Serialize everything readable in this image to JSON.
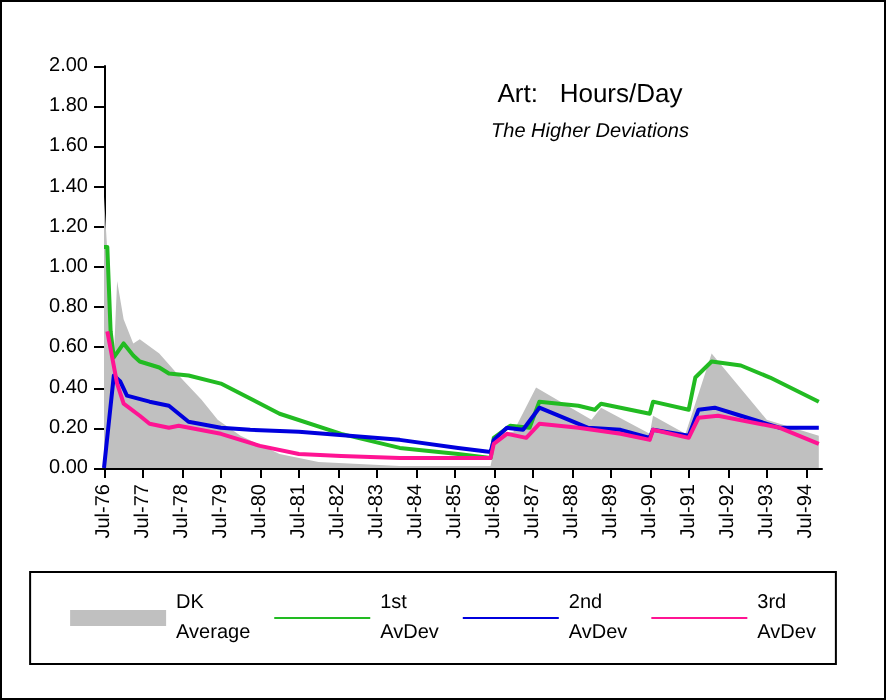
{
  "chart_data": {
    "type": "line",
    "title": "Art:   Hours/Day",
    "subtitle": "The Higher Deviations",
    "xlim": [
      "1976-07",
      "1994-12"
    ],
    "xticks": [
      {
        "value": "1976-07",
        "label": "Jul-76"
      },
      {
        "value": "1977-07",
        "label": "Jul-77"
      },
      {
        "value": "1978-07",
        "label": "Jul-78"
      },
      {
        "value": "1979-07",
        "label": "Jul-79"
      },
      {
        "value": "1980-07",
        "label": "Jul-80"
      },
      {
        "value": "1981-07",
        "label": "Jul-81"
      },
      {
        "value": "1982-07",
        "label": "Jul-82"
      },
      {
        "value": "1983-07",
        "label": "Jul-83"
      },
      {
        "value": "1984-07",
        "label": "Jul-84"
      },
      {
        "value": "1985-07",
        "label": "Jul-85"
      },
      {
        "value": "1986-07",
        "label": "Jul-86"
      },
      {
        "value": "1987-07",
        "label": "Jul-87"
      },
      {
        "value": "1988-07",
        "label": "Jul-88"
      },
      {
        "value": "1989-07",
        "label": "Jul-89"
      },
      {
        "value": "1990-07",
        "label": "Jul-90"
      },
      {
        "value": "1991-07",
        "label": "Jul-91"
      },
      {
        "value": "1992-07",
        "label": "Jul-92"
      },
      {
        "value": "1993-07",
        "label": "Jul-93"
      },
      {
        "value": "1994-07",
        "label": "Jul-94"
      }
    ],
    "ylim": [
      0,
      2
    ],
    "yticks": [
      {
        "value": 0,
        "label": "0.00"
      },
      {
        "value": 0.2,
        "label": "0.20"
      },
      {
        "value": 0.4,
        "label": "0.40"
      },
      {
        "value": 0.6,
        "label": "0.60"
      },
      {
        "value": 0.8,
        "label": "0.80"
      },
      {
        "value": 1,
        "label": "1.00"
      },
      {
        "value": 1.2,
        "label": "1.20"
      },
      {
        "value": 1.4,
        "label": "1.40"
      },
      {
        "value": 1.6,
        "label": "1.60"
      },
      {
        "value": 1.8,
        "label": "1.80"
      },
      {
        "value": 2,
        "label": "2.00"
      }
    ],
    "grid": false,
    "legend": "bottom",
    "marker": "none",
    "line_style": "solid",
    "series": [
      {
        "name": "DK Average",
        "type": "area",
        "color": "#c0c0c0",
        "x": [
          "1976-07",
          "1976-10",
          "1976-11",
          "1977-01",
          "1977-04",
          "1977-06",
          "1977-12",
          "1978-06",
          "1979-01",
          "1979-06",
          "1980-01",
          "1981-01",
          "1982-01",
          "1984-02",
          "1986-06",
          "1986-08",
          "1987-01",
          "1987-08",
          "1989-01",
          "1989-04",
          "1990-07",
          "1990-08",
          "1991-06",
          "1992-02",
          "1993-07",
          "1994-11"
        ],
        "values": [
          1.35,
          0.55,
          0.93,
          0.74,
          0.62,
          0.64,
          0.57,
          0.46,
          0.34,
          0.24,
          0.16,
          0.07,
          0.03,
          0.01,
          0.01,
          0.17,
          0.18,
          0.4,
          0.24,
          0.3,
          0.17,
          0.26,
          0.17,
          0.57,
          0.24,
          0.16
        ]
      },
      {
        "name": "1st AvDev",
        "type": "line",
        "color": "#22bb22",
        "x": [
          "1976-07",
          "1976-08",
          "1976-09",
          "1976-10",
          "1977-01",
          "1977-04",
          "1977-06",
          "1977-12",
          "1978-03",
          "1978-09",
          "1979-07",
          "1981-01",
          "1982-08",
          "1984-02",
          "1985-08",
          "1986-06",
          "1986-07",
          "1986-12",
          "1987-06",
          "1987-09",
          "1988-09",
          "1989-02",
          "1989-04",
          "1990-07",
          "1990-08",
          "1991-07",
          "1991-09",
          "1992-02",
          "1992-11",
          "1993-08",
          "1994-11"
        ],
        "values": [
          1.1,
          1.1,
          0.68,
          0.55,
          0.62,
          0.56,
          0.53,
          0.5,
          0.47,
          0.46,
          0.42,
          0.27,
          0.17,
          0.1,
          0.07,
          0.05,
          0.15,
          0.21,
          0.2,
          0.33,
          0.31,
          0.29,
          0.32,
          0.27,
          0.33,
          0.29,
          0.45,
          0.53,
          0.51,
          0.45,
          0.33
        ]
      },
      {
        "name": "2nd AvDev",
        "type": "line",
        "color": "#0000dd",
        "x": [
          "1976-07",
          "1976-10",
          "1976-12",
          "1977-02",
          "1977-09",
          "1978-03",
          "1978-09",
          "1979-07",
          "1980-04",
          "1981-07",
          "1984-02",
          "1985-08",
          "1986-06",
          "1986-07",
          "1986-11",
          "1987-04",
          "1987-09",
          "1988-12",
          "1989-10",
          "1990-07",
          "1990-08",
          "1991-07",
          "1991-10",
          "1992-03",
          "1992-11",
          "1993-11",
          "1994-11"
        ],
        "values": [
          0,
          0.46,
          0.43,
          0.36,
          0.33,
          0.31,
          0.23,
          0.2,
          0.19,
          0.18,
          0.14,
          0.1,
          0.08,
          0.14,
          0.2,
          0.19,
          0.3,
          0.2,
          0.19,
          0.15,
          0.19,
          0.16,
          0.29,
          0.3,
          0.26,
          0.2,
          0.2
        ]
      },
      {
        "name": "3rd AvDev",
        "type": "line",
        "color": "#ff1493",
        "x": [
          "1976-08",
          "1976-11",
          "1977-01",
          "1977-06",
          "1977-09",
          "1978-03",
          "1978-06",
          "1979-07",
          "1980-07",
          "1981-07",
          "1982-08",
          "1984-02",
          "1986-06",
          "1986-07",
          "1986-11",
          "1987-05",
          "1987-09",
          "1988-09",
          "1989-10",
          "1990-07",
          "1990-08",
          "1991-07",
          "1991-10",
          "1992-04",
          "1993-11",
          "1994-11"
        ],
        "values": [
          0.68,
          0.42,
          0.32,
          0.26,
          0.22,
          0.2,
          0.21,
          0.17,
          0.11,
          0.07,
          0.06,
          0.05,
          0.05,
          0.12,
          0.17,
          0.15,
          0.22,
          0.2,
          0.17,
          0.14,
          0.19,
          0.15,
          0.25,
          0.26,
          0.2,
          0.12
        ]
      }
    ]
  }
}
